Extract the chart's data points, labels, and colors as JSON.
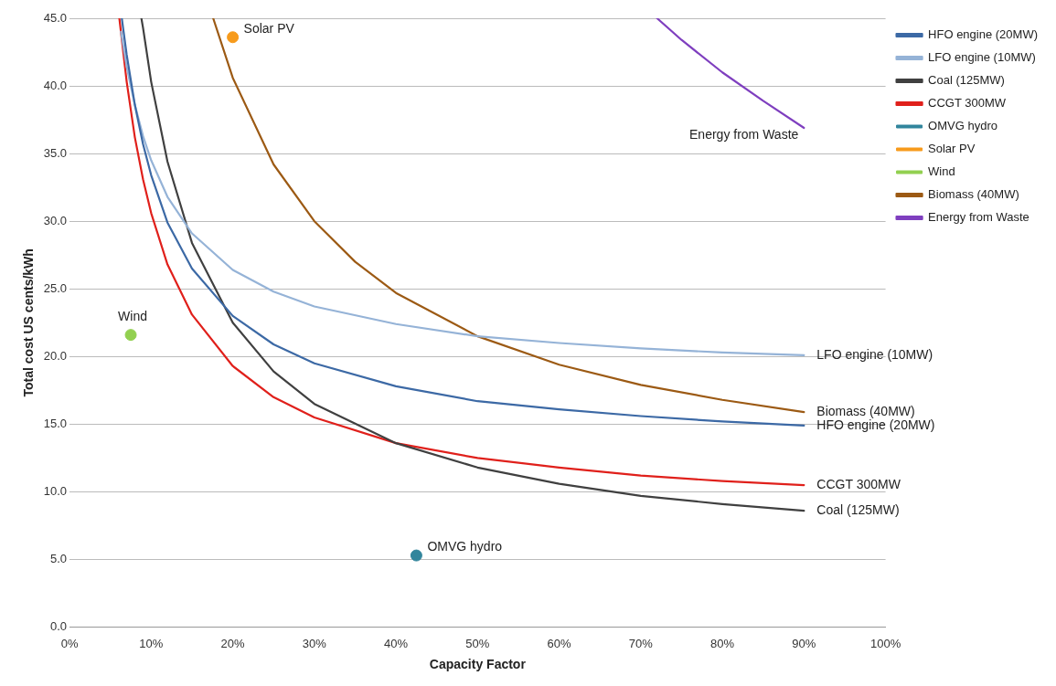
{
  "chart_data": {
    "type": "line",
    "xlabel": "Capacity Factor",
    "ylabel": "Total cost US cents/kWh",
    "xlim": [
      0,
      100
    ],
    "ylim": [
      0,
      45
    ],
    "xticks": [
      {
        "value": 0,
        "label": "0%"
      },
      {
        "value": 10,
        "label": "10%"
      },
      {
        "value": 20,
        "label": "20%"
      },
      {
        "value": 30,
        "label": "30%"
      },
      {
        "value": 40,
        "label": "40%"
      },
      {
        "value": 50,
        "label": "50%"
      },
      {
        "value": 60,
        "label": "60%"
      },
      {
        "value": 70,
        "label": "70%"
      },
      {
        "value": 80,
        "label": "80%"
      },
      {
        "value": 90,
        "label": "90%"
      },
      {
        "value": 100,
        "label": "100%"
      }
    ],
    "yticks": [
      {
        "value": 0,
        "label": "0.0"
      },
      {
        "value": 5,
        "label": "5.0"
      },
      {
        "value": 10,
        "label": "10.0"
      },
      {
        "value": 15,
        "label": "15.0"
      },
      {
        "value": 20,
        "label": "20.0"
      },
      {
        "value": 25,
        "label": "25.0"
      },
      {
        "value": 30,
        "label": "30.0"
      },
      {
        "value": 35,
        "label": "35.0"
      },
      {
        "value": 40,
        "label": "40.0"
      },
      {
        "value": 45,
        "label": "45.0"
      }
    ],
    "grid": "y",
    "legend": "right",
    "marker": "none",
    "line_style": "solid",
    "series": [
      {
        "name": "HFO engine (20MW)",
        "color": "#3c69a5",
        "x": [
          6.4,
          7,
          8,
          9,
          10,
          12,
          15,
          20,
          25,
          30,
          40,
          50,
          60,
          70,
          80,
          90
        ],
        "values": [
          45.0,
          42.3,
          38.6,
          35.7,
          33.4,
          29.9,
          26.5,
          23.0,
          20.9,
          19.5,
          17.8,
          16.7,
          16.1,
          15.6,
          15.2,
          14.9
        ]
      },
      {
        "name": "LFO engine (10MW)",
        "color": "#95b3d7",
        "x": [
          6.3,
          7,
          8,
          9,
          10,
          12,
          15,
          20,
          25,
          30,
          40,
          50,
          60,
          70,
          80,
          90
        ],
        "values": [
          44.0,
          41.4,
          38.6,
          36.3,
          34.5,
          31.8,
          29.1,
          26.4,
          24.8,
          23.7,
          22.4,
          21.5,
          21.0,
          20.6,
          20.3,
          20.1
        ]
      },
      {
        "name": "Coal (125MW)",
        "color": "#404040",
        "x": [
          8.8,
          9,
          10,
          12,
          15,
          20,
          25,
          30,
          40,
          50,
          60,
          70,
          80,
          90
        ],
        "values": [
          45.0,
          44.3,
          40.3,
          34.4,
          28.4,
          22.5,
          18.9,
          16.5,
          13.6,
          11.8,
          10.6,
          9.7,
          9.1,
          8.6
        ]
      },
      {
        "name": "CCGT 300MW",
        "color": "#e0201b",
        "x": [
          6.1,
          7,
          8,
          9,
          10,
          12,
          15,
          20,
          25,
          30,
          40,
          50,
          60,
          70,
          80,
          90
        ],
        "values": [
          45.0,
          40.3,
          36.2,
          33.1,
          30.6,
          26.8,
          23.1,
          19.3,
          17.0,
          15.5,
          13.6,
          12.5,
          11.8,
          11.2,
          10.8,
          10.5
        ]
      },
      {
        "name": "OMVG hydro",
        "type": "scatter",
        "marker": "circle",
        "color": "#31859c",
        "x": [
          42.5
        ],
        "values": [
          5.3
        ]
      },
      {
        "name": "Solar PV",
        "type": "scatter",
        "marker": "circle",
        "color": "#f79b1c",
        "x": [
          20
        ],
        "values": [
          43.6
        ]
      },
      {
        "name": "Wind",
        "type": "scatter",
        "marker": "circle",
        "color": "#92d050",
        "x": [
          7.5
        ],
        "values": [
          21.6
        ]
      },
      {
        "name": "Biomass (40MW)",
        "color": "#9c5a14",
        "x": [
          17.6,
          20,
          25,
          30,
          35,
          40,
          50,
          60,
          70,
          80,
          90
        ],
        "values": [
          45.0,
          40.6,
          34.2,
          30.0,
          27.0,
          24.7,
          21.5,
          19.4,
          17.9,
          16.8,
          15.9
        ]
      },
      {
        "name": "Energy from Waste",
        "color": "#7f3fbf",
        "x": [
          72,
          75,
          80,
          85,
          90
        ],
        "values": [
          45.0,
          43.4,
          41.0,
          38.9,
          36.9
        ]
      }
    ]
  }
}
